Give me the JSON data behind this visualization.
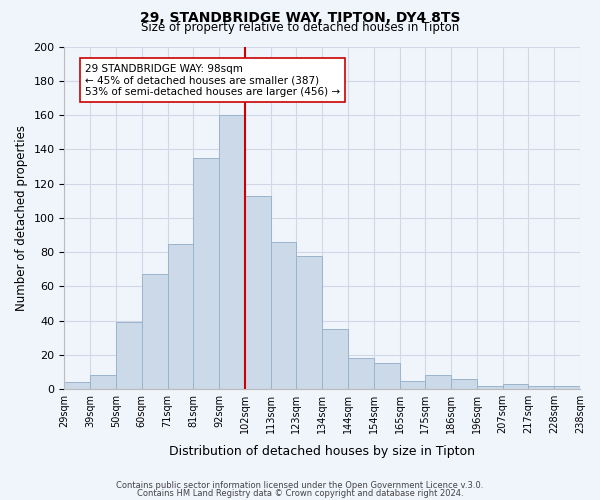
{
  "title1": "29, STANDBRIDGE WAY, TIPTON, DY4 8TS",
  "title2": "Size of property relative to detached houses in Tipton",
  "xlabel": "Distribution of detached houses by size in Tipton",
  "ylabel": "Number of detached properties",
  "bin_labels": [
    "29sqm",
    "39sqm",
    "50sqm",
    "60sqm",
    "71sqm",
    "81sqm",
    "92sqm",
    "102sqm",
    "113sqm",
    "123sqm",
    "134sqm",
    "144sqm",
    "154sqm",
    "165sqm",
    "175sqm",
    "186sqm",
    "196sqm",
    "207sqm",
    "217sqm",
    "228sqm",
    "238sqm"
  ],
  "bar_heights": [
    4,
    8,
    39,
    67,
    85,
    135,
    160,
    113,
    86,
    78,
    35,
    18,
    15,
    5,
    8,
    6,
    2,
    3,
    2,
    2
  ],
  "bar_color": "#ccd9e8",
  "bar_edge_color": "#9ab4cc",
  "vline_color": "#cc0000",
  "vline_pos": 6.5,
  "annotation_text": "29 STANDBRIDGE WAY: 98sqm\n← 45% of detached houses are smaller (387)\n53% of semi-detached houses are larger (456) →",
  "annotation_box_color": "#ffffff",
  "annotation_box_edge": "#cc0000",
  "ylim": [
    0,
    200
  ],
  "yticks": [
    0,
    20,
    40,
    60,
    80,
    100,
    120,
    140,
    160,
    180,
    200
  ],
  "footer1": "Contains HM Land Registry data © Crown copyright and database right 2024.",
  "footer2": "Contains public sector information licensed under the Open Government Licence v.3.0.",
  "bg_color": "#f0f4fb",
  "grid_color": "#d0d8e8"
}
